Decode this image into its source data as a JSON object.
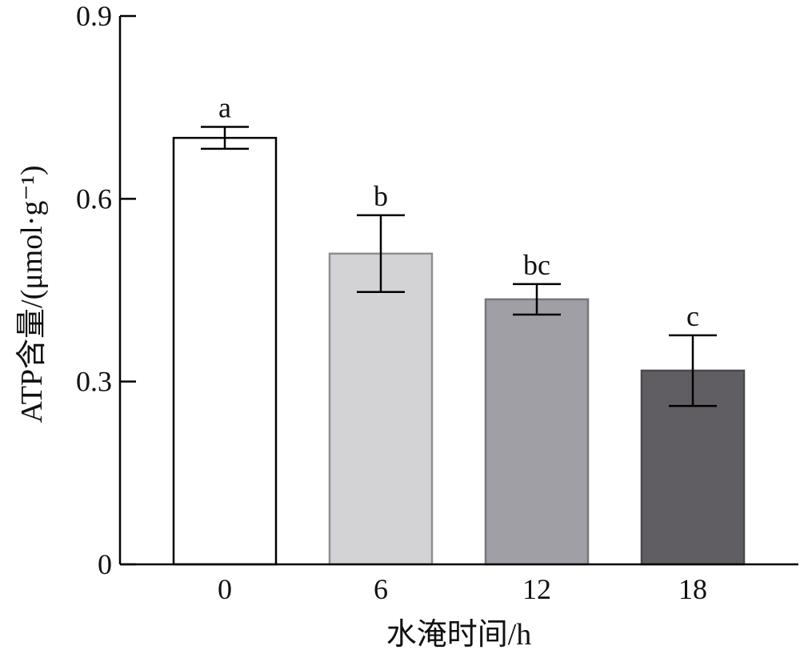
{
  "chart_data": {
    "type": "bar",
    "xlabel": "水淹时间/h",
    "ylabel": "ATP含量/(μmol·g⁻¹)",
    "ylim": [
      0,
      0.9
    ],
    "yticks": [
      "0",
      "0.3",
      "0.6",
      "0.9"
    ],
    "yticks_values": [
      0,
      0.3,
      0.6,
      0.9
    ],
    "categories": [
      "0",
      "6",
      "12",
      "18"
    ],
    "values": [
      0.7,
      0.51,
      0.435,
      0.318
    ],
    "errors": [
      0.018,
      0.063,
      0.025,
      0.058
    ],
    "significance": [
      "a",
      "b",
      "bc",
      "c"
    ],
    "colors": [
      "#ffffff",
      "#d3d3d6",
      "#a09fa6",
      "#605e62"
    ],
    "edge_colors": [
      "#000000",
      "#8f8f93",
      "#77767b",
      "#4a494c"
    ],
    "grid": false,
    "legend": "none"
  }
}
